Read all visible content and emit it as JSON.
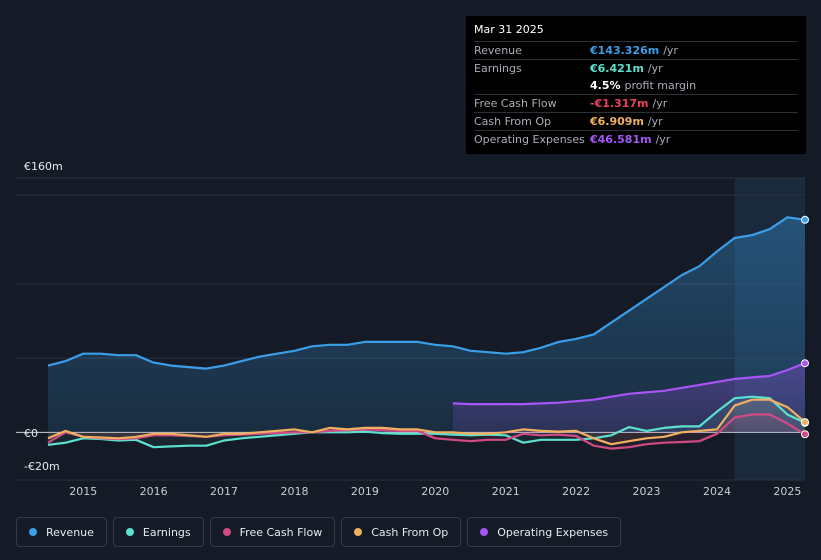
{
  "tooltip": {
    "date": "Mar 31 2025",
    "rows": [
      {
        "label": "Revenue",
        "value": "€143.326m",
        "unit": "/yr",
        "color": "#3b9ee8"
      },
      {
        "label": "Earnings",
        "value": "€6.421m",
        "unit": "/yr",
        "color": "#5ce0d0"
      },
      {
        "label": "",
        "value": "4.5%",
        "unit": "profit margin",
        "color": "#ffffff"
      },
      {
        "label": "Free Cash Flow",
        "value": "-€1.317m",
        "unit": "/yr",
        "color": "#e8455c"
      },
      {
        "label": "Cash From Op",
        "value": "€6.909m",
        "unit": "/yr",
        "color": "#f0b060"
      },
      {
        "label": "Operating Expenses",
        "value": "€46.581m",
        "unit": "/yr",
        "color": "#a855f7"
      }
    ]
  },
  "legend": [
    {
      "label": "Revenue",
      "color": "#3b9ee8"
    },
    {
      "label": "Earnings",
      "color": "#5ce0d0"
    },
    {
      "label": "Free Cash Flow",
      "color": "#d14a86"
    },
    {
      "label": "Cash From Op",
      "color": "#f0b060"
    },
    {
      "label": "Operating Expenses",
      "color": "#a855f7"
    }
  ],
  "chart_data": {
    "type": "area",
    "title": "",
    "ylabels": [
      "€160m",
      "€0",
      "-€20m"
    ],
    "ylim": [
      -20,
      160
    ],
    "xlim": [
      2014.5,
      2025.25
    ],
    "xticks": [
      2015,
      2016,
      2017,
      2018,
      2019,
      2020,
      2021,
      2022,
      2023,
      2024,
      2025
    ],
    "highlight_from": 2024.25,
    "series": [
      {
        "name": "Revenue",
        "color": "#3b9ee8",
        "x": [
          2014.5,
          2014.75,
          2015,
          2015.25,
          2015.5,
          2015.75,
          2016,
          2016.25,
          2016.5,
          2016.75,
          2017,
          2017.25,
          2017.5,
          2017.75,
          2018,
          2018.25,
          2018.5,
          2018.75,
          2019,
          2019.25,
          2019.5,
          2019.75,
          2020,
          2020.25,
          2020.5,
          2020.75,
          2021,
          2021.25,
          2021.5,
          2021.75,
          2022,
          2022.25,
          2022.5,
          2022.75,
          2023,
          2023.25,
          2023.5,
          2023.75,
          2024,
          2024.25,
          2024.5,
          2024.75,
          2025,
          2025.25
        ],
        "values": [
          45,
          48,
          53,
          53,
          52,
          52,
          47,
          45,
          44,
          43,
          45,
          48,
          51,
          53,
          55,
          58,
          59,
          59,
          61,
          61,
          61,
          61,
          59,
          58,
          55,
          54,
          53,
          54,
          57,
          61,
          63,
          66,
          74,
          82,
          90,
          98,
          106,
          112,
          122,
          131,
          133,
          137,
          145,
          143.3
        ]
      },
      {
        "name": "Operating Expenses",
        "color": "#a855f7",
        "x": [
          2020.25,
          2020.5,
          2020.75,
          2021,
          2021.25,
          2021.5,
          2021.75,
          2022,
          2022.25,
          2022.5,
          2022.75,
          2023,
          2023.25,
          2023.5,
          2023.75,
          2024,
          2024.25,
          2024.5,
          2024.75,
          2025,
          2025.25
        ],
        "values": [
          19.5,
          19,
          19,
          19,
          19,
          19.5,
          20,
          21,
          22,
          24,
          26,
          27,
          28,
          30,
          32,
          34,
          36,
          37,
          38,
          42,
          46.6
        ]
      },
      {
        "name": "Earnings",
        "color": "#5ce0d0",
        "x": [
          2014.5,
          2014.75,
          2015,
          2015.25,
          2015.5,
          2015.75,
          2016,
          2016.25,
          2016.5,
          2016.75,
          2017,
          2017.25,
          2017.5,
          2017.75,
          2018,
          2018.25,
          2018.5,
          2018.75,
          2019,
          2019.25,
          2019.5,
          2019.75,
          2020,
          2020.25,
          2020.5,
          2020.75,
          2021,
          2021.25,
          2021.5,
          2021.75,
          2022,
          2022.25,
          2022.5,
          2022.75,
          2023,
          2023.25,
          2023.5,
          2023.75,
          2024,
          2024.25,
          2024.5,
          2024.75,
          2025,
          2025.25
        ],
        "values": [
          -8.5,
          -7,
          -4,
          -4.5,
          -5.5,
          -5,
          -10,
          -9.5,
          -9,
          -9,
          -5.5,
          -4,
          -3,
          -2,
          -1,
          0,
          0,
          0,
          0.5,
          -0.5,
          -1,
          -1,
          -1,
          -1.5,
          -2,
          -1.5,
          -2,
          -7,
          -5,
          -5,
          -5,
          -4,
          -2,
          3.5,
          1,
          3,
          4,
          4,
          14,
          23,
          24,
          23,
          12,
          6.4
        ]
      },
      {
        "name": "Free Cash Flow",
        "color": "#d14a86",
        "x": [
          2014.5,
          2014.75,
          2015,
          2015.25,
          2015.5,
          2015.75,
          2016,
          2016.25,
          2016.5,
          2016.75,
          2017,
          2017.25,
          2017.5,
          2017.75,
          2018,
          2018.25,
          2018.5,
          2018.75,
          2019,
          2019.25,
          2019.5,
          2019.75,
          2020,
          2020.25,
          2020.5,
          2020.75,
          2021,
          2021.25,
          2021.5,
          2021.75,
          2022,
          2022.25,
          2022.5,
          2022.75,
          2023,
          2023.25,
          2023.5,
          2023.75,
          2024,
          2024.25,
          2024.5,
          2024.75,
          2025,
          2025.25
        ],
        "values": [
          -7,
          0,
          -3,
          -4,
          -4.5,
          -4,
          -2,
          -2,
          -2.5,
          -3,
          -2,
          -1.5,
          -1,
          -0.5,
          0,
          0,
          1,
          1.5,
          2,
          1.5,
          1,
          1,
          -4,
          -5,
          -6,
          -5,
          -5,
          -1,
          -2,
          -1.5,
          -2.5,
          -9,
          -11,
          -10,
          -8,
          -7,
          -6.5,
          -6,
          -1,
          10,
          12,
          12,
          6,
          -1.3
        ]
      },
      {
        "name": "Cash From Op",
        "color": "#f0b060",
        "x": [
          2014.5,
          2014.75,
          2015,
          2015.25,
          2015.5,
          2015.75,
          2016,
          2016.25,
          2016.5,
          2016.75,
          2017,
          2017.25,
          2017.5,
          2017.75,
          2018,
          2018.25,
          2018.5,
          2018.75,
          2019,
          2019.25,
          2019.5,
          2019.75,
          2020,
          2020.25,
          2020.5,
          2020.75,
          2021,
          2021.25,
          2021.5,
          2021.75,
          2022,
          2022.25,
          2022.5,
          2022.75,
          2023,
          2023.25,
          2023.5,
          2023.75,
          2024,
          2024.25,
          2024.5,
          2024.75,
          2025,
          2025.25
        ],
        "values": [
          -4,
          1,
          -3,
          -3.5,
          -4,
          -3,
          -1,
          -1,
          -2,
          -3,
          -1,
          -1,
          0,
          1,
          2,
          0,
          3,
          2,
          3,
          3,
          2,
          2,
          0,
          0,
          -1,
          -1,
          0,
          2,
          1,
          0.5,
          1,
          -4,
          -8,
          -6,
          -4,
          -3,
          0,
          1,
          2,
          18,
          22,
          22,
          17,
          6.9
        ]
      }
    ]
  }
}
